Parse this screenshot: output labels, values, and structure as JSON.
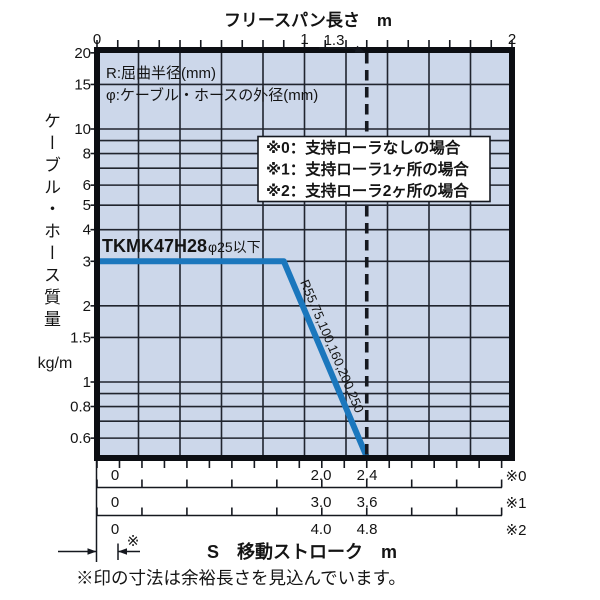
{
  "colors": {
    "plot_bg": "#ccd7ea",
    "line": "#1b77bd",
    "grid": "#20242e",
    "ink": "#15181f"
  },
  "top_axis": {
    "title": "フリースパン長さ　m",
    "ticks": [
      {
        "label": "0",
        "m": 0
      },
      {
        "label": "1",
        "m": 1
      },
      {
        "label": "2",
        "m": 2
      }
    ],
    "callout_label": "1.3"
  },
  "y_axis": {
    "title": "ケーブル・ホース質量",
    "unit": "kg/m",
    "tick_labels": [
      "20",
      "15",
      "10",
      "8",
      "6",
      "5",
      "4",
      "3",
      "2",
      "1.5",
      "1",
      "0.8",
      "0.6"
    ]
  },
  "legend": {
    "radius": "R:屈曲半径(mm)",
    "diameter": "φ:ケーブル・ホースの外径(mm)"
  },
  "notes": {
    "lines": [
      "※0：支持ローラなしの場合",
      "※1：支持ローラ1ヶ所の場合",
      "※2：支持ローラ2ヶ所の場合"
    ]
  },
  "series_label": {
    "model": "TKMK47H28",
    "diameter": "φ25以下",
    "radii": "R55,75,100,160,200,250"
  },
  "rulers": [
    {
      "zero": "0",
      "labels": [
        "2.0",
        "2.4"
      ],
      "note": "※0"
    },
    {
      "zero": "0",
      "labels": [
        "3.0",
        "3.6"
      ],
      "note": "※1"
    },
    {
      "zero": "0",
      "labels": [
        "4.0",
        "4.8"
      ],
      "note": "※2"
    }
  ],
  "stroke_axis": {
    "title": "S　移動ストローク　m",
    "margin_mark": "※"
  },
  "footnote": "※印の寸法は余裕長さを見込んでいます。",
  "chart_data": {
    "type": "line",
    "title": "TKMK47H28 ケーブル・ホース質量−フリースパン長さ／移動ストローク選定線図",
    "x_axis": {
      "label": "フリースパン長さ",
      "unit": "m",
      "range": [
        0,
        2
      ],
      "tick_labels": [
        0,
        1,
        2
      ],
      "minor_tick_step": 0.1,
      "grid_step": 0.2,
      "reference_line_x": 1.3
    },
    "y_axis": {
      "label": "ケーブル・ホース質量",
      "unit": "kg/m",
      "scale": "log",
      "range": [
        0.5,
        20
      ],
      "tick_labels": [
        20,
        15,
        10,
        8,
        6,
        5,
        4,
        3,
        2,
        1.5,
        1,
        0.8,
        0.6
      ],
      "grid_values": [
        15,
        10,
        9,
        8,
        7,
        6,
        5,
        4,
        3,
        2,
        1.5,
        1,
        0.9,
        0.8,
        0.7,
        0.6
      ]
    },
    "series": [
      {
        "name": "TKMK47H28 φ25以下（R55,75,100,160,200,250）",
        "points": [
          [
            0,
            3
          ],
          [
            0.9,
            3
          ],
          [
            1.3,
            0.5
          ]
        ]
      }
    ],
    "stroke_scales": [
      {
        "note": "※0",
        "description": "支持ローラなしの場合",
        "max": 2.4,
        "tick_step": 0.2,
        "labeled_values": [
          2.0,
          2.4
        ]
      },
      {
        "note": "※1",
        "description": "支持ローラ1ヶ所の場合",
        "max": 3.6,
        "tick_step": 0.6,
        "labeled_values": [
          3.0,
          3.6
        ]
      },
      {
        "note": "※2",
        "description": "支持ローラ2ヶ所の場合",
        "max": 4.8,
        "tick_step": 0.8,
        "labeled_values": [
          4.0,
          4.8
        ]
      }
    ],
    "legend_position": "none",
    "grid": true
  }
}
